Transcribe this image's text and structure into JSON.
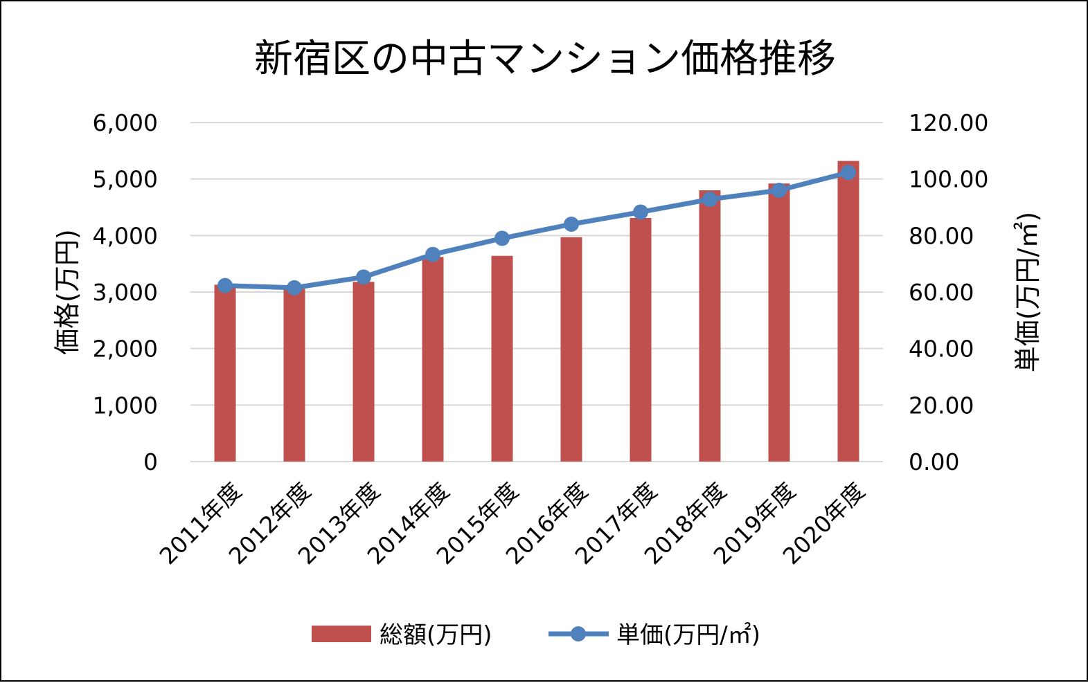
{
  "chart_data": {
    "type": "bar+line",
    "title": "新宿区の中古マンション価格推移",
    "categories": [
      "2011年度",
      "2012年度",
      "2013年度",
      "2014年度",
      "2015年度",
      "2016年度",
      "2017年度",
      "2018年度",
      "2019年度",
      "2020年度"
    ],
    "series": [
      {
        "name": "総額(万円)",
        "kind": "bar",
        "axis": "left",
        "color": "#c0504d",
        "values": [
          3130,
          3060,
          3180,
          3620,
          3640,
          3970,
          4310,
          4800,
          4920,
          5320
        ]
      },
      {
        "name": "単価(万円/㎡)",
        "kind": "line",
        "axis": "right",
        "color": "#4f81bd",
        "values": [
          62.3,
          61.5,
          65.3,
          73.3,
          79.0,
          84.0,
          88.3,
          92.8,
          96.0,
          102.3
        ]
      }
    ],
    "ylabel_left": "価格(万円)",
    "ylabel_right": "単価(万円/㎡)",
    "ylim_left": [
      0,
      6000
    ],
    "ylim_right": [
      0,
      120
    ],
    "yticks_left": [
      "0",
      "1,000",
      "2,000",
      "3,000",
      "4,000",
      "5,000",
      "6,000"
    ],
    "yticks_right": [
      "0.00",
      "20.00",
      "40.00",
      "60.00",
      "80.00",
      "100.00",
      "120.00"
    ],
    "grid": true,
    "legend_position": "bottom",
    "grid_color": "#d9d9d9"
  }
}
